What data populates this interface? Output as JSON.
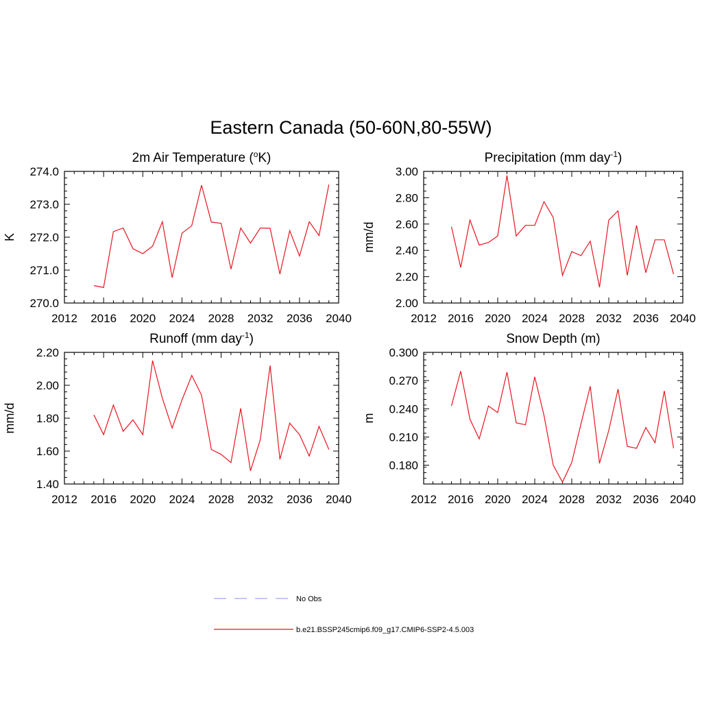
{
  "title": "Eastern Canada (50-60N,80-55W)",
  "colors": {
    "model": "#e8141e",
    "obs": "#a0a6f0",
    "frame": "#000000"
  },
  "legend": [
    {
      "label": "No Obs",
      "style": "dashed",
      "color": "#a0a6f0"
    },
    {
      "label": "b.e21.BSSP245cmip6.f09_g17.CMIP6-SSP2-4.5.003",
      "style": "solid",
      "color": "#e8141e"
    }
  ],
  "chart_data": [
    {
      "type": "line",
      "title_main": "2m Air Temperature (",
      "title_sup": "o",
      "title_end": "K)",
      "ylabel": "K",
      "xlim": [
        2012,
        2040
      ],
      "xticks": [
        2012,
        2016,
        2020,
        2024,
        2028,
        2032,
        2036,
        2040
      ],
      "ylim": [
        270.0,
        274.0
      ],
      "yticks": [
        270.0,
        271.0,
        272.0,
        273.0,
        274.0
      ],
      "ydecimals": 1,
      "yminor": 0.2,
      "x": [
        2015,
        2016,
        2017,
        2018,
        2019,
        2020,
        2021,
        2022,
        2023,
        2024,
        2025,
        2026,
        2027,
        2028,
        2029,
        2030,
        2031,
        2032,
        2033,
        2034,
        2035,
        2036,
        2037,
        2038,
        2039
      ],
      "values": [
        270.53,
        270.47,
        272.17,
        272.28,
        271.65,
        271.5,
        271.73,
        272.47,
        270.77,
        272.12,
        272.35,
        273.58,
        272.46,
        272.42,
        271.03,
        272.28,
        271.82,
        272.28,
        272.27,
        270.88,
        272.2,
        271.43,
        272.47,
        272.05,
        273.6
      ]
    },
    {
      "type": "line",
      "title_main": "Precipitation (mm day",
      "title_sup": "-1",
      "title_end": ")",
      "ylabel": "mm/d",
      "xlim": [
        2012,
        2040
      ],
      "xticks": [
        2012,
        2016,
        2020,
        2024,
        2028,
        2032,
        2036,
        2040
      ],
      "ylim": [
        2.0,
        3.0
      ],
      "yticks": [
        2.0,
        2.2,
        2.4,
        2.6,
        2.8,
        3.0
      ],
      "ydecimals": 2,
      "yminor": 0.05,
      "x": [
        2015,
        2016,
        2017,
        2018,
        2019,
        2020,
        2021,
        2022,
        2023,
        2024,
        2025,
        2026,
        2027,
        2028,
        2029,
        2030,
        2031,
        2032,
        2033,
        2034,
        2035,
        2036,
        2037,
        2038,
        2039
      ],
      "values": [
        2.58,
        2.27,
        2.63,
        2.44,
        2.46,
        2.51,
        2.97,
        2.51,
        2.59,
        2.59,
        2.77,
        2.65,
        2.21,
        2.39,
        2.36,
        2.47,
        2.12,
        2.63,
        2.7,
        2.21,
        2.59,
        2.23,
        2.48,
        2.48,
        2.22
      ]
    },
    {
      "type": "line",
      "title_main": "Runoff (mm day",
      "title_sup": "-1",
      "title_end": ")",
      "ylabel": "mm/d",
      "xlim": [
        2012,
        2040
      ],
      "xticks": [
        2012,
        2016,
        2020,
        2024,
        2028,
        2032,
        2036,
        2040
      ],
      "ylim": [
        1.4,
        2.2
      ],
      "yticks": [
        1.4,
        1.6,
        1.8,
        2.0,
        2.2
      ],
      "ydecimals": 2,
      "yminor": 0.04,
      "x": [
        2015,
        2016,
        2017,
        2018,
        2019,
        2020,
        2021,
        2022,
        2023,
        2024,
        2025,
        2026,
        2027,
        2028,
        2029,
        2030,
        2031,
        2032,
        2033,
        2034,
        2035,
        2036,
        2037,
        2038,
        2039
      ],
      "values": [
        1.82,
        1.7,
        1.88,
        1.72,
        1.79,
        1.7,
        2.15,
        1.92,
        1.74,
        1.91,
        2.06,
        1.94,
        1.61,
        1.58,
        1.53,
        1.86,
        1.48,
        1.67,
        2.12,
        1.55,
        1.77,
        1.7,
        1.57,
        1.75,
        1.61
      ]
    },
    {
      "type": "line",
      "title_main": "Snow Depth (m)",
      "title_sup": "",
      "title_end": "",
      "ylabel": "m",
      "xlim": [
        2012,
        2040
      ],
      "xticks": [
        2012,
        2016,
        2020,
        2024,
        2028,
        2032,
        2036,
        2040
      ],
      "ylim": [
        0.16,
        0.3
      ],
      "yticks": [
        0.18,
        0.21,
        0.24,
        0.27,
        0.3
      ],
      "ydecimals": 3,
      "yminor": 0.006,
      "x": [
        2015,
        2016,
        2017,
        2018,
        2019,
        2020,
        2021,
        2022,
        2023,
        2024,
        2025,
        2026,
        2027,
        2028,
        2029,
        2030,
        2031,
        2032,
        2033,
        2034,
        2035,
        2036,
        2037,
        2038,
        2039
      ],
      "values": [
        0.243,
        0.28,
        0.229,
        0.208,
        0.243,
        0.236,
        0.279,
        0.225,
        0.223,
        0.274,
        0.233,
        0.18,
        0.162,
        0.183,
        0.224,
        0.264,
        0.182,
        0.217,
        0.261,
        0.2,
        0.198,
        0.22,
        0.204,
        0.259,
        0.198
      ]
    }
  ]
}
